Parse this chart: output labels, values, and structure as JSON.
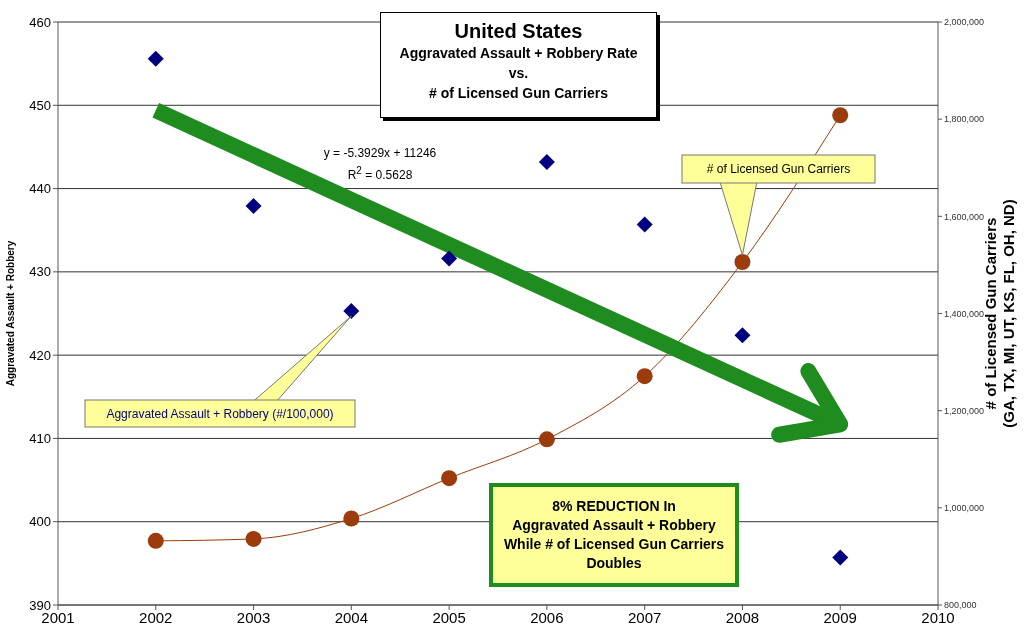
{
  "chart_data": {
    "type": "scatter",
    "title": "United States",
    "subtitle": "Aggravated Assault + Robbery Rate\nvs.\n# of Licensed Gun Carriers",
    "xlim": [
      2001,
      2010
    ],
    "xticks": [
      2001,
      2002,
      2003,
      2004,
      2005,
      2006,
      2007,
      2008,
      2009,
      2010
    ],
    "ylim": [
      390,
      460
    ],
    "yticks": [
      390,
      400,
      410,
      420,
      430,
      440,
      450,
      460
    ],
    "y2lim": [
      800000,
      2000000
    ],
    "y2ticks": [
      {
        "value": 800000,
        "label": "800,000"
      },
      {
        "value": 1000000,
        "label": "1,000,000"
      },
      {
        "value": 1200000,
        "label": "1,200,000"
      },
      {
        "value": 1400000,
        "label": "1,400,000"
      },
      {
        "value": 1600000,
        "label": "1,600,000"
      },
      {
        "value": 1800000,
        "label": "1,800,000"
      },
      {
        "value": 2000000,
        "label": "2,000,000"
      }
    ],
    "ylabel": "Aggravated Assault + Robbery",
    "y2label": "# of Licensed Gun Carriers\n(GA, TX, MI, UT, KS, FL, OH, ND)",
    "grid": "y",
    "x": [
      2002,
      2003,
      2004,
      2005,
      2006,
      2007,
      2008,
      2009
    ],
    "series": [
      {
        "name": "Aggravated Assault + Robbery (#/100,000)",
        "marker": "diamond",
        "color": "#000080",
        "values": [
          455.6,
          437.9,
          425.3,
          431.6,
          443.2,
          435.7,
          422.4,
          395.7
        ]
      },
      {
        "name": "# of Licensed Gun Carriers",
        "type": "line",
        "axis": "y2",
        "marker": "circle",
        "color": "#9c3b0c",
        "values": [
          932000,
          936000,
          978000,
          1061000,
          1141000,
          1271000,
          1506000,
          1808000
        ]
      },
      {
        "type": "line",
        "marker": "none",
        "color": "#1e8c1e",
        "x": [
          2002,
          2009
        ],
        "values": [
          449.4,
          411.7
        ]
      }
    ],
    "annotations": [
      "y = -5.3929x + 11246",
      "R$^{2}$ = 0.5628",
      "8% REDUCTION In\nAggravated Assault + Robbery\nWhile # of Licensed Gun Carriers\nDoubles"
    ]
  }
}
